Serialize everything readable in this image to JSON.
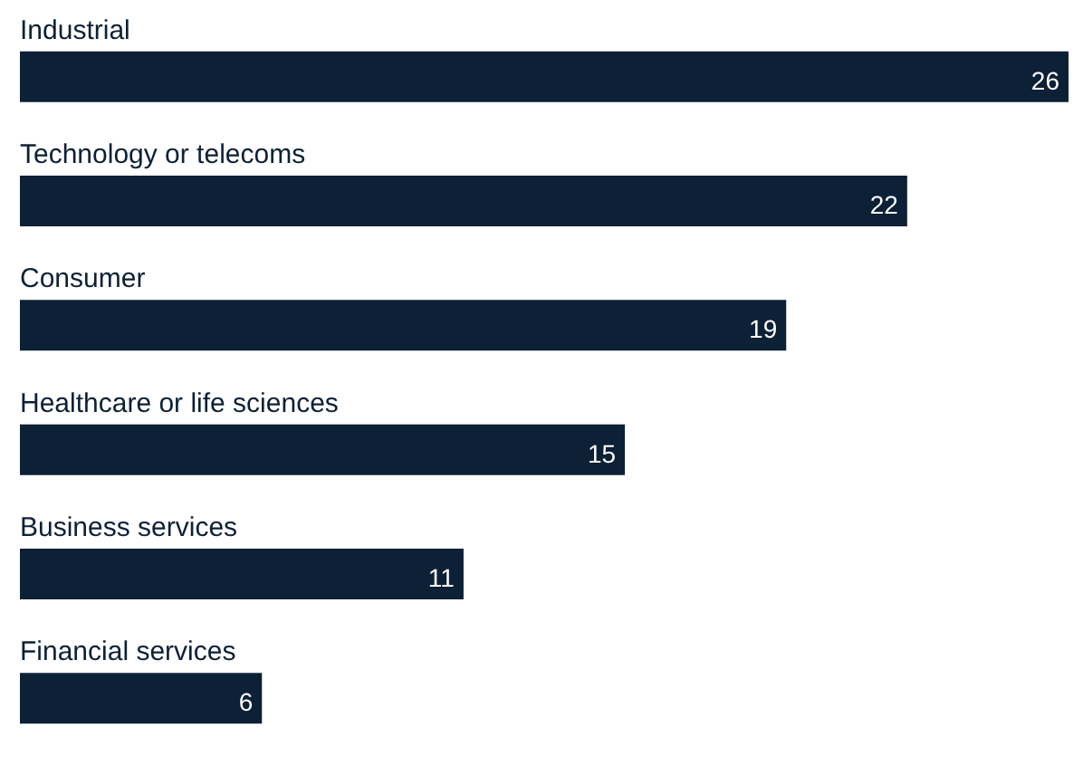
{
  "chart_data": {
    "type": "bar",
    "orientation": "horizontal",
    "categories": [
      "Industrial",
      "Technology or telecoms",
      "Consumer",
      "Healthcare or life sciences",
      "Business services",
      "Financial services"
    ],
    "values": [
      26,
      22,
      19,
      15,
      11,
      6
    ],
    "color": "#0c2036",
    "data_labels": true
  }
}
